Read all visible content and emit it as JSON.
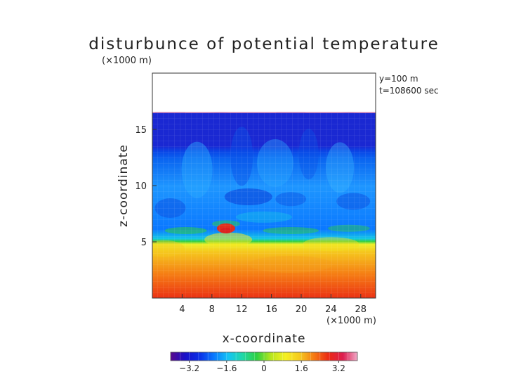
{
  "chart_data": {
    "type": "heatmap",
    "title": "disturbunce of potential temperature",
    "unit_note": "(×1000 m)",
    "annotation_y": "y=100 m",
    "annotation_t": "t=108600 sec",
    "xlabel": "x-coordinate",
    "ylabel": "z-coordinate",
    "x_unit": "(×1000 m)",
    "xlim": [
      0,
      30
    ],
    "ylim": [
      0,
      20
    ],
    "x_ticks": [
      4,
      8,
      12,
      16,
      20,
      24,
      28
    ],
    "y_ticks": [
      5,
      10,
      15
    ],
    "field_top_z": 16.5,
    "colorbar_range": [
      -4,
      4
    ],
    "colorbar_ticks": [
      {
        "value": -3.2,
        "label": "−3.2"
      },
      {
        "value": -1.6,
        "label": "−1.6"
      },
      {
        "value": 0,
        "label": "0"
      },
      {
        "value": 1.6,
        "label": "1.6"
      },
      {
        "value": 3.2,
        "label": "3.2"
      }
    ],
    "colormap": [
      "#5a0a8c",
      "#1a10c8",
      "#0a2ee6",
      "#0a78ff",
      "#14c3f5",
      "#20d8a8",
      "#2ed040",
      "#b8e61e",
      "#f5f023",
      "#f5c81e",
      "#f57814",
      "#eb2814",
      "#dc1e50",
      "#f0aac8"
    ]
  }
}
